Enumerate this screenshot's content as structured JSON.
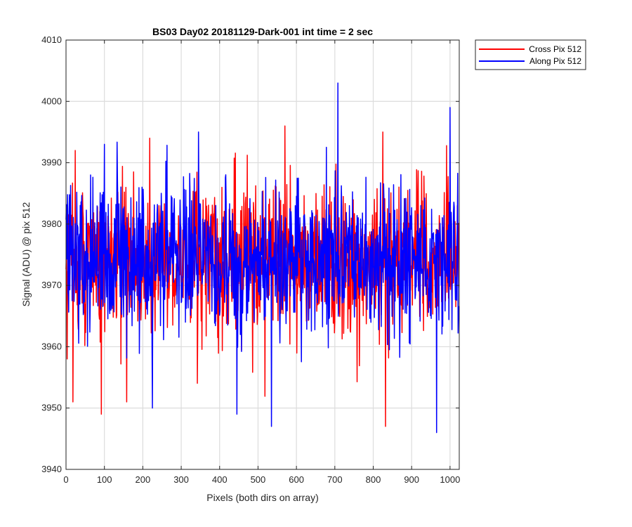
{
  "chart_data": {
    "type": "line",
    "title": "BS03 Day02 20181129-Dark-001 int time = 2 sec",
    "xlabel": "Pixels (both dirs on array)",
    "ylabel": "Signal (ADU) @ pix 512",
    "xlim": [
      0,
      1024
    ],
    "ylim": [
      3940,
      4010
    ],
    "xticks": [
      0,
      100,
      200,
      300,
      400,
      500,
      600,
      700,
      800,
      900,
      1000
    ],
    "yticks": [
      3940,
      3950,
      3960,
      3970,
      3980,
      3990,
      4000,
      4010
    ],
    "grid": true,
    "legend_position": "outside-top-right",
    "n_points": 1024,
    "series": [
      {
        "name": "Cross Pix 512",
        "color": "#ff0000",
        "mean": 3974,
        "std": 7,
        "range": [
          3947,
          3996
        ],
        "notable_points": [
          {
            "x": 3,
            "y": 3958
          },
          {
            "x": 18,
            "y": 3951
          },
          {
            "x": 24,
            "y": 3992
          },
          {
            "x": 92,
            "y": 3949
          },
          {
            "x": 158,
            "y": 3951
          },
          {
            "x": 218,
            "y": 3994
          },
          {
            "x": 570,
            "y": 3996
          },
          {
            "x": 832,
            "y": 3947
          },
          {
            "x": 825,
            "y": 3995
          }
        ]
      },
      {
        "name": "Along Pix 512",
        "color": "#0000ff",
        "mean": 3974,
        "std": 7,
        "range": [
          3946,
          4003
        ],
        "notable_points": [
          {
            "x": 100,
            "y": 3993
          },
          {
            "x": 225,
            "y": 3950
          },
          {
            "x": 345,
            "y": 3995
          },
          {
            "x": 445,
            "y": 3949
          },
          {
            "x": 535,
            "y": 3947
          },
          {
            "x": 708,
            "y": 4003
          },
          {
            "x": 965,
            "y": 3946
          },
          {
            "x": 1000,
            "y": 3999
          }
        ]
      }
    ]
  }
}
